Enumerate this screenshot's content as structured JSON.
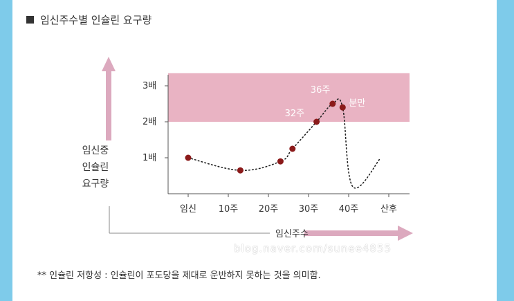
{
  "header": {
    "title": "임신주수별 인슐린 요구량"
  },
  "chart_data": {
    "type": "line",
    "title": "임신주수별 인슐린 요구량",
    "ylabel": [
      "임신중",
      "인슐린",
      "요구량"
    ],
    "xlabel": "임신주수",
    "x_ticks": [
      "임신",
      "10주",
      "20주",
      "30주",
      "40주",
      "산후"
    ],
    "y_ticks": [
      "1배",
      "2배",
      "3배"
    ],
    "ylim": [
      0,
      3.3
    ],
    "xlim": [
      0,
      50
    ],
    "band": {
      "from": 2,
      "to": 3.35,
      "color": "#e9b3c3"
    },
    "series": [
      {
        "points": [
          {
            "x": 0,
            "y": 1.0
          },
          {
            "x": 13,
            "y": 0.65
          },
          {
            "x": 23,
            "y": 0.9
          },
          {
            "x": 26,
            "y": 1.25
          },
          {
            "x": 32,
            "y": 2.0
          },
          {
            "x": 36,
            "y": 2.5
          },
          {
            "x": 38.5,
            "y": 2.4
          },
          {
            "x": 41,
            "y": 0.2
          },
          {
            "x": 48,
            "y": 1.0
          }
        ],
        "markers": [
          0,
          13,
          23,
          26,
          32,
          36,
          38.5
        ],
        "color": "#8b1a1a"
      }
    ],
    "annotations": [
      {
        "text": "32주",
        "x": 32,
        "y": 2.0
      },
      {
        "text": "36주",
        "x": 36,
        "y": 2.5
      },
      {
        "text": "분만",
        "x": 38.5,
        "y": 2.4
      }
    ],
    "colors": {
      "band": "#e9b3c3",
      "arrow": "#dca9be",
      "marker": "#8b1a1a",
      "axis": "#555555"
    }
  },
  "watermark": "blog.naver.com/sunee4855",
  "footnote": "** 인슐린 저항성 : 인슐린이 포도당을 제대로 운반하지 못하는 것을 의미함."
}
